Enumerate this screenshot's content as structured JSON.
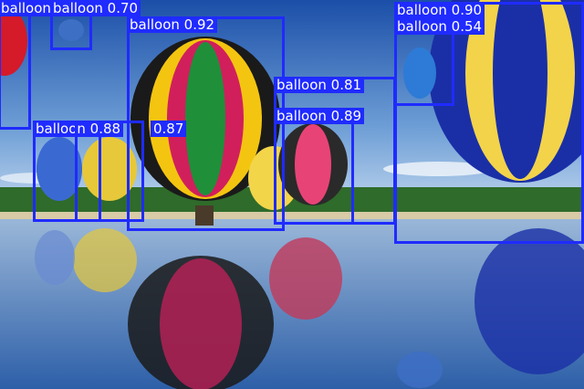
{
  "image": {
    "description_free": true,
    "colors": {
      "box": "#1f2bff",
      "label_text": "#ffffff"
    }
  },
  "detections": [
    {
      "label": "balloon",
      "score": "balloon"
    },
    {
      "label": "balloon 0.70"
    },
    {
      "label": "balloon 0.92"
    },
    {
      "label": "balloon 0.81"
    },
    {
      "label": "balloon 0.89"
    },
    {
      "label": "balloon 0.88"
    },
    {
      "label": "0.87"
    },
    {
      "label": "balloon 0.90"
    },
    {
      "label": "balloon 0.54"
    }
  ]
}
